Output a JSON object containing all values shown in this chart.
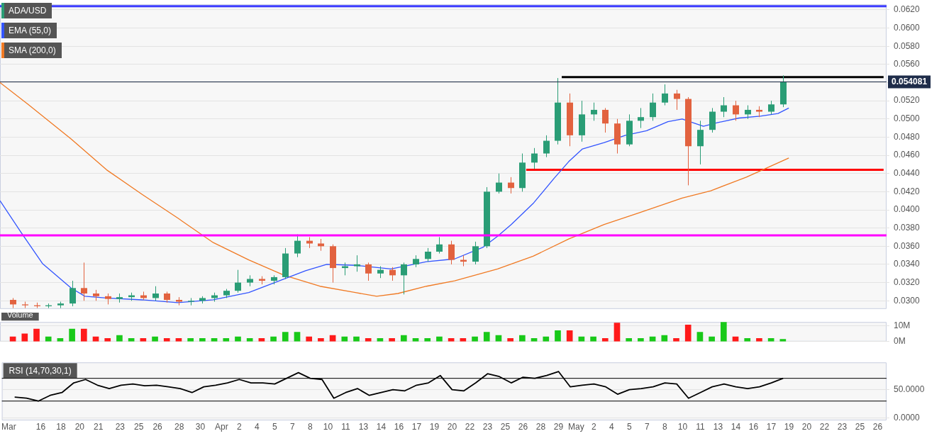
{
  "chart_data": [
    {
      "type": "candlestick",
      "legend": "top left",
      "grid": "y",
      "tick_labels": "y",
      "marker": "none",
      "xlim": [
        "--03-13T10:00",
        "--05-27T06:00"
      ],
      "ylim": [
        0.0291,
        0.0626
      ],
      "yticks": [
        {
          "value": 0.03,
          "label": "0.0300"
        },
        {
          "value": 0.032,
          "label": "0.0320"
        },
        {
          "value": 0.034,
          "label": "0.0340"
        },
        {
          "value": 0.036,
          "label": "0.0360"
        },
        {
          "value": 0.038,
          "label": "0.0380"
        },
        {
          "value": 0.04,
          "label": "0.0400"
        },
        {
          "value": 0.042,
          "label": "0.0420"
        },
        {
          "value": 0.044,
          "label": "0.0440"
        },
        {
          "value": 0.046,
          "label": "0.0460"
        },
        {
          "value": 0.048,
          "label": "0.0480"
        },
        {
          "value": 0.05,
          "label": "0.0500"
        },
        {
          "value": 0.052,
          "label": "0.0520"
        },
        {
          "value": 0.054,
          "label": null
        },
        {
          "value": 0.056,
          "label": "0.0560"
        },
        {
          "value": 0.058,
          "label": "0.0580"
        },
        {
          "value": 0.06,
          "label": "0.0600"
        },
        {
          "value": 0.062,
          "label": "0.0620"
        }
      ],
      "ref_lines": [
        {
          "axis": "y",
          "value": 0.0624,
          "color": "#3d3dff"
        },
        {
          "axis": "y",
          "value": 0.0372,
          "color": "#ff00ff"
        },
        {
          "axis": "y",
          "value": 0.054081,
          "label": "0.054081",
          "color": "#1f2d4a"
        }
      ],
      "series": [
        {
          "name": "ADA/USD",
          "x": [
            "--03-14T12:00",
            "--03-15T12:00",
            "--03-16T12:00",
            "--03-17T12:00",
            "--03-18T12:00",
            "--03-19T12:00",
            "--03-20T12:00",
            "--03-21T12:00",
            "--03-22T12:00",
            "--03-23T12:00",
            "--03-24T12:00",
            "--03-25T12:00",
            "--03-26T12:00",
            "--03-27T12:00",
            "--03-28T12:00",
            "--03-29T12:00",
            "--03-30T12:00",
            "--03-31T12:00",
            "--04-01T12:00",
            "--04-02T12:00",
            "--04-03T12:00",
            "--04-04T12:00",
            "--04-05T12:00",
            "--04-06T12:00",
            "--04-07T12:00",
            "--04-08T12:00",
            "--04-09T12:00",
            "--04-10T12:00",
            "--04-11T12:00",
            "--04-12T12:00",
            "--04-13T12:00",
            "--04-14T12:00",
            "--04-15T12:00",
            "--04-16T12:00",
            "--04-17T12:00",
            "--04-18T12:00",
            "--04-19T12:00",
            "--04-20T12:00",
            "--04-21T12:00",
            "--04-22T12:00",
            "--04-23T12:00",
            "--04-24T12:00",
            "--04-25T12:00",
            "--04-26T12:00",
            "--04-27T12:00",
            "--04-28T12:00",
            "--04-29T12:00",
            "--04-30T12:00",
            "--05-01T12:00",
            "--05-02T12:00",
            "--05-03T12:00",
            "--05-04T12:00",
            "--05-05T12:00",
            "--05-06T12:00",
            "--05-07T12:00",
            "--05-08T12:00",
            "--05-09T12:00",
            "--05-10T12:00",
            "--05-11T12:00",
            "--05-12T12:00",
            "--05-13T12:00",
            "--05-14T12:00",
            "--05-15T12:00",
            "--05-16T12:00",
            "--05-17T12:00",
            "--05-18T12:00"
          ],
          "ohlc": [
            [
              0.0301,
              0.0303,
              0.0292,
              0.0296
            ],
            [
              0.0296,
              0.0299,
              0.0292,
              0.0295
            ],
            [
              0.0295,
              0.0298,
              0.0292,
              0.0294
            ],
            [
              0.0294,
              0.0297,
              0.0292,
              0.0295
            ],
            [
              0.0295,
              0.0299,
              0.0292,
              0.0297
            ],
            [
              0.0297,
              0.0322,
              0.0294,
              0.0314
            ],
            [
              0.0314,
              0.0342,
              0.03,
              0.0308
            ],
            [
              0.0308,
              0.0312,
              0.03,
              0.0305
            ],
            [
              0.0305,
              0.0308,
              0.0296,
              0.0302
            ],
            [
              0.0302,
              0.0308,
              0.0298,
              0.0304
            ],
            [
              0.0304,
              0.0309,
              0.03,
              0.0306
            ],
            [
              0.0306,
              0.031,
              0.0301,
              0.0303
            ],
            [
              0.0303,
              0.0316,
              0.03,
              0.0308
            ],
            [
              0.0308,
              0.031,
              0.0298,
              0.0301
            ],
            [
              0.0301,
              0.0304,
              0.0295,
              0.0299
            ],
            [
              0.0299,
              0.0303,
              0.0295,
              0.03
            ],
            [
              0.03,
              0.0305,
              0.0297,
              0.0303
            ],
            [
              0.0303,
              0.0309,
              0.0299,
              0.0306
            ],
            [
              0.0306,
              0.0313,
              0.0303,
              0.0311
            ],
            [
              0.0311,
              0.0334,
              0.0309,
              0.032
            ],
            [
              0.032,
              0.0328,
              0.0316,
              0.0324
            ],
            [
              0.0324,
              0.0327,
              0.0318,
              0.0322
            ],
            [
              0.0322,
              0.0328,
              0.0318,
              0.0326
            ],
            [
              0.0326,
              0.0358,
              0.0324,
              0.0352
            ],
            [
              0.0352,
              0.0373,
              0.0348,
              0.0366
            ],
            [
              0.0366,
              0.037,
              0.0358,
              0.0363
            ],
            [
              0.0363,
              0.0368,
              0.0355,
              0.036
            ],
            [
              0.036,
              0.0362,
              0.032,
              0.0336
            ],
            [
              0.0336,
              0.0342,
              0.0328,
              0.0338
            ],
            [
              0.0338,
              0.035,
              0.0332,
              0.034
            ],
            [
              0.034,
              0.0342,
              0.0322,
              0.033
            ],
            [
              0.033,
              0.0338,
              0.0325,
              0.0334
            ],
            [
              0.0334,
              0.0337,
              0.0322,
              0.0328
            ],
            [
              0.0328,
              0.0342,
              0.0307,
              0.034
            ],
            [
              0.034,
              0.035,
              0.0337,
              0.0346
            ],
            [
              0.0346,
              0.0358,
              0.0343,
              0.0354
            ],
            [
              0.0354,
              0.037,
              0.0352,
              0.0362
            ],
            [
              0.0362,
              0.0366,
              0.034,
              0.0345
            ],
            [
              0.0345,
              0.035,
              0.0338,
              0.0343
            ],
            [
              0.0343,
              0.0365,
              0.034,
              0.036
            ],
            [
              0.036,
              0.0425,
              0.0358,
              0.042
            ],
            [
              0.042,
              0.044,
              0.0418,
              0.043
            ],
            [
              0.043,
              0.0436,
              0.0418,
              0.0424
            ],
            [
              0.0424,
              0.0462,
              0.042,
              0.0452
            ],
            [
              0.0452,
              0.0468,
              0.0445,
              0.0462
            ],
            [
              0.0462,
              0.0482,
              0.0458,
              0.0476
            ],
            [
              0.0476,
              0.0545,
              0.0472,
              0.0518
            ],
            [
              0.0518,
              0.0528,
              0.047,
              0.0482
            ],
            [
              0.0482,
              0.052,
              0.0475,
              0.0505
            ],
            [
              0.0505,
              0.0518,
              0.0498,
              0.051
            ],
            [
              0.051,
              0.0512,
              0.0485,
              0.0495
            ],
            [
              0.0495,
              0.05,
              0.0462,
              0.0472
            ],
            [
              0.0472,
              0.0505,
              0.047,
              0.0498
            ],
            [
              0.0498,
              0.0512,
              0.049,
              0.0502
            ],
            [
              0.0502,
              0.0528,
              0.0498,
              0.0518
            ],
            [
              0.0518,
              0.0538,
              0.0515,
              0.0528
            ],
            [
              0.0528,
              0.0532,
              0.051,
              0.0522
            ],
            [
              0.0522,
              0.0524,
              0.0427,
              0.047
            ],
            [
              0.047,
              0.0498,
              0.045,
              0.0488
            ],
            [
              0.0488,
              0.0512,
              0.0485,
              0.0508
            ],
            [
              0.0508,
              0.0524,
              0.0502,
              0.0515
            ],
            [
              0.0515,
              0.052,
              0.0498,
              0.0505
            ],
            [
              0.0505,
              0.0515,
              0.05,
              0.051
            ],
            [
              0.051,
              0.0514,
              0.0502,
              0.0508
            ],
            [
              0.0508,
              0.052,
              0.0505,
              0.0516
            ],
            [
              0.0516,
              0.0548,
              0.0513,
              0.0541
            ]
          ],
          "colors": [
            "#e2623f",
            "#e2623f",
            "#e2623f",
            "#2a9d76",
            "#2a9d76",
            "#2a9d76",
            "#e2623f",
            "#e2623f",
            "#e2623f",
            "#2a9d76",
            "#2a9d76",
            "#e2623f",
            "#2a9d76",
            "#e2623f",
            "#e2623f",
            "#2a9d76",
            "#2a9d76",
            "#2a9d76",
            "#2a9d76",
            "#2a9d76",
            "#2a9d76",
            "#e2623f",
            "#2a9d76",
            "#2a9d76",
            "#2a9d76",
            "#e2623f",
            "#e2623f",
            "#e2623f",
            "#2a9d76",
            "#2a9d76",
            "#e2623f",
            "#2a9d76",
            "#e2623f",
            "#2a9d76",
            "#2a9d76",
            "#2a9d76",
            "#2a9d76",
            "#e2623f",
            "#e2623f",
            "#2a9d76",
            "#2a9d76",
            "#2a9d76",
            "#e2623f",
            "#2a9d76",
            "#2a9d76",
            "#2a9d76",
            "#2a9d76",
            "#e2623f",
            "#2a9d76",
            "#2a9d76",
            "#e2623f",
            "#e2623f",
            "#2a9d76",
            "#2a9d76",
            "#2a9d76",
            "#2a9d76",
            "#e2623f",
            "#e2623f",
            "#2a9d76",
            "#2a9d76",
            "#2a9d76",
            "#e2623f",
            "#2a9d76",
            "#e2623f",
            "#2a9d76",
            "#2a9d76"
          ]
        },
        {
          "name": "EMA (55,0)",
          "type": "line",
          "color": "#3355ff",
          "x": [
            "--03-13T10:00",
            "--03-15T05:00",
            "--03-17T00:00",
            "--03-19T10:00",
            "--03-20T14:00",
            "--03-22T10:00",
            "--03-25T10:00",
            "--03-28T10:00",
            "--03-31T10:00",
            "--04-03T10:00",
            "--04-06T10:00",
            "--04-08T05:00",
            "--04-10T00:00",
            "--04-12T10:00",
            "--04-15T10:00",
            "--04-18T10:00",
            "--04-20T19:00",
            "--04-23T05:00",
            "--04-24T10:00",
            "--04-25T14:00",
            "--04-27T10:00",
            "--04-29T05:00",
            "--04-30T10:00",
            "--05-01T14:00",
            "--05-03T10:00",
            "--05-05T05:00",
            "--05-07T00:00",
            "--05-08T19:00",
            "--05-10T00:00",
            "--05-11T19:00",
            "--05-13T00:00",
            "--05-14T19:00",
            "--05-16T14:00",
            "--05-18T02:00",
            "--05-19T00:00"
          ],
          "values": [
            0.041,
            0.0375,
            0.0341,
            0.0314,
            0.0305,
            0.0303,
            0.0301,
            0.0298,
            0.0301,
            0.0309,
            0.0324,
            0.0333,
            0.034,
            0.0339,
            0.0335,
            0.0343,
            0.0346,
            0.0359,
            0.0371,
            0.0384,
            0.0407,
            0.0435,
            0.0453,
            0.0467,
            0.0474,
            0.0482,
            0.0487,
            0.0497,
            0.05,
            0.0492,
            0.0496,
            0.0501,
            0.0503,
            0.0506,
            0.0512
          ]
        },
        {
          "name": "SMA (200,0)",
          "type": "line",
          "color": "#f07a24",
          "x": [
            "--03-13T10:00",
            "--03-15T19:00",
            "--03-19T10:00",
            "--03-22T10:00",
            "--03-25T10:00",
            "--03-28T10:00",
            "--03-31T10:00",
            "--04-03T10:00",
            "--04-06T10:00",
            "--04-09T10:00",
            "--04-12T10:00",
            "--04-14T05:00",
            "--04-16T00:00",
            "--04-18T10:00",
            "--04-20T19:00",
            "--04-24T10:00",
            "--04-27T10:00",
            "--04-30T10:00",
            "--05-03T10:00",
            "--05-06T10:00",
            "--05-10T00:00",
            "--05-12T10:00",
            "--05-15T10:00",
            "--05-19T00:00"
          ],
          "values": [
            0.054,
            0.0516,
            0.0478,
            0.0444,
            0.0417,
            0.0391,
            0.0364,
            0.0345,
            0.0328,
            0.0316,
            0.0309,
            0.0305,
            0.0308,
            0.0316,
            0.0322,
            0.0335,
            0.0349,
            0.0368,
            0.0384,
            0.0397,
            0.0413,
            0.0421,
            0.0436,
            0.0457
          ]
        },
        {
          "type": "line",
          "color": "#ff0000",
          "x": [
            "--04-26T20:00",
            "--05-27T00:00"
          ],
          "values": [
            0.0444,
            0.0444
          ]
        },
        {
          "type": "line",
          "color": "#000000",
          "x": [
            "--04-29T20:00",
            "--05-27T00:00"
          ],
          "values": [
            0.0546,
            0.0546
          ]
        }
      ]
    },
    {
      "type": "bar",
      "title": "Volume",
      "grid": "y",
      "tick_labels": "y",
      "xlim": [
        "--03-13T10:00",
        "--05-27T06:00"
      ],
      "ylim": [
        0,
        12.5
      ],
      "yticks": [
        {
          "value": 0,
          "label": "0M"
        },
        {
          "value": 10,
          "label": "10M"
        }
      ],
      "x": [
        "--03-14T12:00",
        "--03-15T12:00",
        "--03-16T12:00",
        "--03-17T12:00",
        "--03-18T12:00",
        "--03-19T12:00",
        "--03-20T12:00",
        "--03-21T12:00",
        "--03-22T12:00",
        "--03-23T12:00",
        "--03-24T12:00",
        "--03-25T12:00",
        "--03-26T12:00",
        "--03-27T12:00",
        "--03-28T12:00",
        "--03-29T12:00",
        "--03-30T12:00",
        "--03-31T12:00",
        "--04-01T12:00",
        "--04-02T12:00",
        "--04-03T12:00",
        "--04-04T12:00",
        "--04-05T12:00",
        "--04-06T12:00",
        "--04-07T12:00",
        "--04-08T12:00",
        "--04-09T12:00",
        "--04-10T12:00",
        "--04-11T12:00",
        "--04-12T12:00",
        "--04-13T12:00",
        "--04-14T12:00",
        "--04-15T12:00",
        "--04-16T12:00",
        "--04-17T12:00",
        "--04-18T12:00",
        "--04-19T12:00",
        "--04-20T12:00",
        "--04-21T12:00",
        "--04-22T12:00",
        "--04-23T12:00",
        "--04-24T12:00",
        "--04-25T12:00",
        "--04-26T12:00",
        "--04-27T12:00",
        "--04-28T12:00",
        "--04-29T12:00",
        "--04-30T12:00",
        "--05-01T12:00",
        "--05-02T12:00",
        "--05-03T12:00",
        "--05-04T12:00",
        "--05-05T12:00",
        "--05-06T12:00",
        "--05-07T12:00",
        "--05-08T12:00",
        "--05-09T12:00",
        "--05-10T12:00",
        "--05-11T12:00",
        "--05-12T12:00",
        "--05-13T12:00",
        "--05-14T12:00",
        "--05-15T12:00",
        "--05-16T12:00",
        "--05-17T12:00",
        "--05-18T12:00"
      ],
      "values": [
        3,
        5,
        8,
        3,
        2,
        8,
        8,
        3,
        2,
        4,
        2,
        2,
        3,
        2,
        2,
        2,
        2,
        2,
        2,
        3,
        2,
        2,
        3,
        6,
        6,
        3,
        2,
        4,
        3,
        3,
        2,
        2,
        2,
        4,
        2,
        2,
        3,
        2,
        2,
        3,
        6,
        4,
        2,
        4,
        2,
        3,
        7,
        7,
        3,
        3,
        2,
        11.9,
        2,
        2,
        3,
        4,
        2,
        10.6,
        6,
        3,
        12.4,
        3,
        2,
        2,
        2,
        1.5
      ],
      "colors": [
        "#ff1a1a",
        "#ff1a1a",
        "#ff1a1a",
        "#19c919",
        "#19c919",
        "#19c919",
        "#ff1a1a",
        "#ff1a1a",
        "#ff1a1a",
        "#19c919",
        "#19c919",
        "#ff1a1a",
        "#19c919",
        "#ff1a1a",
        "#ff1a1a",
        "#19c919",
        "#19c919",
        "#19c919",
        "#19c919",
        "#19c919",
        "#19c919",
        "#ff1a1a",
        "#19c919",
        "#19c919",
        "#19c919",
        "#ff1a1a",
        "#ff1a1a",
        "#ff1a1a",
        "#19c919",
        "#19c919",
        "#ff1a1a",
        "#19c919",
        "#ff1a1a",
        "#19c919",
        "#19c919",
        "#19c919",
        "#19c919",
        "#ff1a1a",
        "#ff1a1a",
        "#19c919",
        "#19c919",
        "#19c919",
        "#ff1a1a",
        "#19c919",
        "#19c919",
        "#19c919",
        "#19c919",
        "#ff1a1a",
        "#19c919",
        "#19c919",
        "#ff1a1a",
        "#ff1a1a",
        "#19c919",
        "#19c919",
        "#19c919",
        "#19c919",
        "#ff1a1a",
        "#ff1a1a",
        "#19c919",
        "#19c919",
        "#19c919",
        "#ff1a1a",
        "#19c919",
        "#ff1a1a",
        "#19c919",
        "#19c919"
      ]
    },
    {
      "type": "line",
      "title": "RSI (14,70,30,1)",
      "grid": "y",
      "marker": "none",
      "color": "#000000",
      "xlim": [
        "--03-13T10:00",
        "--05-27T06:00"
      ],
      "ylim": [
        -4,
        98
      ],
      "yticks": [
        {
          "value": 0,
          "label": "0.0000"
        },
        {
          "value": 50,
          "label": "50.0000"
        }
      ],
      "xticks": [
        {
          "value": "--03-14T00:00",
          "label": "Mar"
        },
        {
          "value": "--03-16T17:00",
          "label": "16"
        },
        {
          "value": "--03-18T10:00",
          "label": "18"
        },
        {
          "value": "--03-20T00:00",
          "label": "20"
        },
        {
          "value": "--03-21T14:00",
          "label": "21"
        },
        {
          "value": "--03-23T10:00",
          "label": "23"
        },
        {
          "value": "--03-25T00:00",
          "label": "25"
        },
        {
          "value": "--03-26T14:00",
          "label": "26"
        },
        {
          "value": "--03-28T10:00",
          "label": "28"
        },
        {
          "value": "--03-30T05:00",
          "label": "30"
        },
        {
          "value": "--04-01T00:00",
          "label": "Apr"
        },
        {
          "value": "--04-02T12:00",
          "label": "2"
        },
        {
          "value": "--04-04T00:00",
          "label": "4"
        },
        {
          "value": "--04-05T12:00",
          "label": "5"
        },
        {
          "value": "--04-07T00:00",
          "label": "7"
        },
        {
          "value": "--04-08T12:00",
          "label": "8"
        },
        {
          "value": "--04-10T00:00",
          "label": "10"
        },
        {
          "value": "--04-11T12:00",
          "label": "11"
        },
        {
          "value": "--04-13T00:00",
          "label": "13"
        },
        {
          "value": "--04-14T12:00",
          "label": "14"
        },
        {
          "value": "--04-16T00:00",
          "label": "16"
        },
        {
          "value": "--04-17T12:00",
          "label": "17"
        },
        {
          "value": "--04-19T00:00",
          "label": "19"
        },
        {
          "value": "--04-20T12:00",
          "label": "20"
        },
        {
          "value": "--04-22T00:00",
          "label": "22"
        },
        {
          "value": "--04-23T12:00",
          "label": "23"
        },
        {
          "value": "--04-25T00:00",
          "label": "25"
        },
        {
          "value": "--04-26T12:00",
          "label": "26"
        },
        {
          "value": "--04-28T00:00",
          "label": "28"
        },
        {
          "value": "--04-29T12:00",
          "label": "29"
        },
        {
          "value": "--05-01T00:00",
          "label": "May"
        },
        {
          "value": "--05-02T12:00",
          "label": "2"
        },
        {
          "value": "--05-04T00:00",
          "label": "4"
        },
        {
          "value": "--05-05T12:00",
          "label": "5"
        },
        {
          "value": "--05-07T00:00",
          "label": "7"
        },
        {
          "value": "--05-08T12:00",
          "label": "8"
        },
        {
          "value": "--05-10T00:00",
          "label": "10"
        },
        {
          "value": "--05-11T12:00",
          "label": "11"
        },
        {
          "value": "--05-13T00:00",
          "label": "13"
        },
        {
          "value": "--05-14T12:00",
          "label": "14"
        },
        {
          "value": "--05-16T00:00",
          "label": "16"
        },
        {
          "value": "--05-17T12:00",
          "label": "17"
        },
        {
          "value": "--05-19T00:00",
          "label": "19"
        },
        {
          "value": "--05-20T12:00",
          "label": "20"
        },
        {
          "value": "--05-22T00:00",
          "label": "22"
        },
        {
          "value": "--05-23T12:00",
          "label": "23"
        },
        {
          "value": "--05-25T00:00",
          "label": "25"
        },
        {
          "value": "--05-26T12:00",
          "label": "26"
        }
      ],
      "ref_lines": [
        {
          "axis": "y",
          "value": 70,
          "color": "#000000"
        },
        {
          "axis": "y",
          "value": 30,
          "color": "#000000"
        }
      ],
      "x": [
        "--03-14T12:00",
        "--03-15T12:00",
        "--03-16T12:00",
        "--03-17T12:00",
        "--03-18T12:00",
        "--03-19T12:00",
        "--03-20T12:00",
        "--03-21T12:00",
        "--03-22T12:00",
        "--03-23T12:00",
        "--03-24T12:00",
        "--03-25T12:00",
        "--03-26T12:00",
        "--03-27T12:00",
        "--03-28T12:00",
        "--03-29T12:00",
        "--03-30T12:00",
        "--03-31T12:00",
        "--04-01T12:00",
        "--04-02T12:00",
        "--04-03T12:00",
        "--04-04T12:00",
        "--04-05T12:00",
        "--04-06T12:00",
        "--04-07T12:00",
        "--04-08T12:00",
        "--04-09T12:00",
        "--04-10T12:00",
        "--04-11T12:00",
        "--04-12T12:00",
        "--04-13T12:00",
        "--04-14T12:00",
        "--04-15T12:00",
        "--04-16T12:00",
        "--04-17T12:00",
        "--04-18T12:00",
        "--04-19T12:00",
        "--04-20T12:00",
        "--04-21T12:00",
        "--04-22T12:00",
        "--04-23T12:00",
        "--04-24T12:00",
        "--04-25T12:00",
        "--04-26T12:00",
        "--04-27T12:00",
        "--04-28T12:00",
        "--04-29T12:00",
        "--04-30T12:00",
        "--05-01T12:00",
        "--05-02T12:00",
        "--05-03T12:00",
        "--05-04T12:00",
        "--05-05T12:00",
        "--05-06T12:00",
        "--05-07T12:00",
        "--05-08T12:00",
        "--05-09T12:00",
        "--05-10T12:00",
        "--05-11T12:00",
        "--05-12T12:00",
        "--05-13T12:00",
        "--05-14T12:00",
        "--05-15T12:00",
        "--05-16T12:00",
        "--05-17T12:00",
        "--05-18T12:00"
      ],
      "values": [
        37,
        35,
        30,
        40,
        45,
        62,
        68,
        58,
        52,
        58,
        60,
        57,
        58,
        55,
        52,
        45,
        55,
        58,
        62,
        68,
        62,
        62,
        60,
        70,
        80,
        70,
        68,
        35,
        45,
        52,
        40,
        45,
        50,
        48,
        58,
        62,
        75,
        50,
        48,
        62,
        78,
        73,
        62,
        72,
        70,
        75,
        82,
        55,
        58,
        60,
        55,
        42,
        50,
        52,
        55,
        62,
        60,
        35,
        45,
        55,
        60,
        55,
        52,
        55,
        62,
        70
      ]
    }
  ]
}
